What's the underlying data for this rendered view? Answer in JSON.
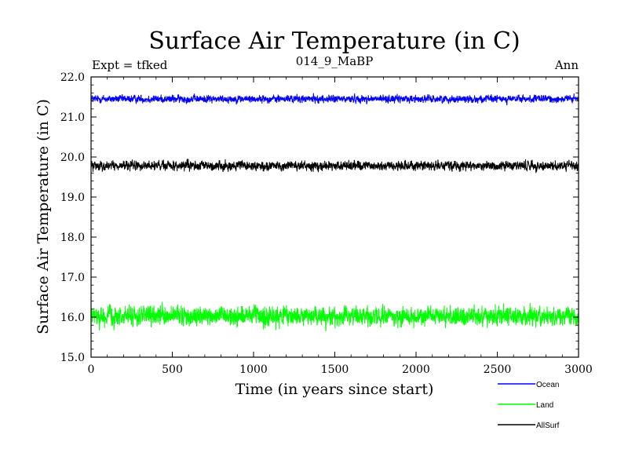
{
  "chart_data": {
    "type": "line",
    "title": "Surface Air Temperature (in C)",
    "subtitle": "014_9_MaBP",
    "left_label": "Expt = tfked",
    "right_label": "Ann",
    "xlabel": "Time (in years since start)",
    "ylabel": "Surface Air Temperature (in C)",
    "xlim": [
      0,
      3000
    ],
    "ylim": [
      15.0,
      22.0
    ],
    "x_ticks": [
      "0",
      "500",
      "1000",
      "1500",
      "2000",
      "2500",
      "3000"
    ],
    "y_ticks": [
      "15.0",
      "16.0",
      "17.0",
      "18.0",
      "19.0",
      "20.0",
      "21.0",
      "22.0"
    ],
    "grid": false,
    "legend_position": "bottom-right",
    "x_start": 1,
    "x_step": 1,
    "series": [
      {
        "name": "Ocean",
        "color": "#0000ff",
        "mean": 21.45,
        "approx_range": [
          21.25,
          21.65
        ]
      },
      {
        "name": "Land",
        "color": "#00ff00",
        "mean": 16.02,
        "approx_range": [
          15.55,
          16.55
        ]
      },
      {
        "name": "AllSurf",
        "color": "#000000",
        "mean": 19.78,
        "approx_range": [
          19.55,
          20.05
        ]
      }
    ]
  }
}
